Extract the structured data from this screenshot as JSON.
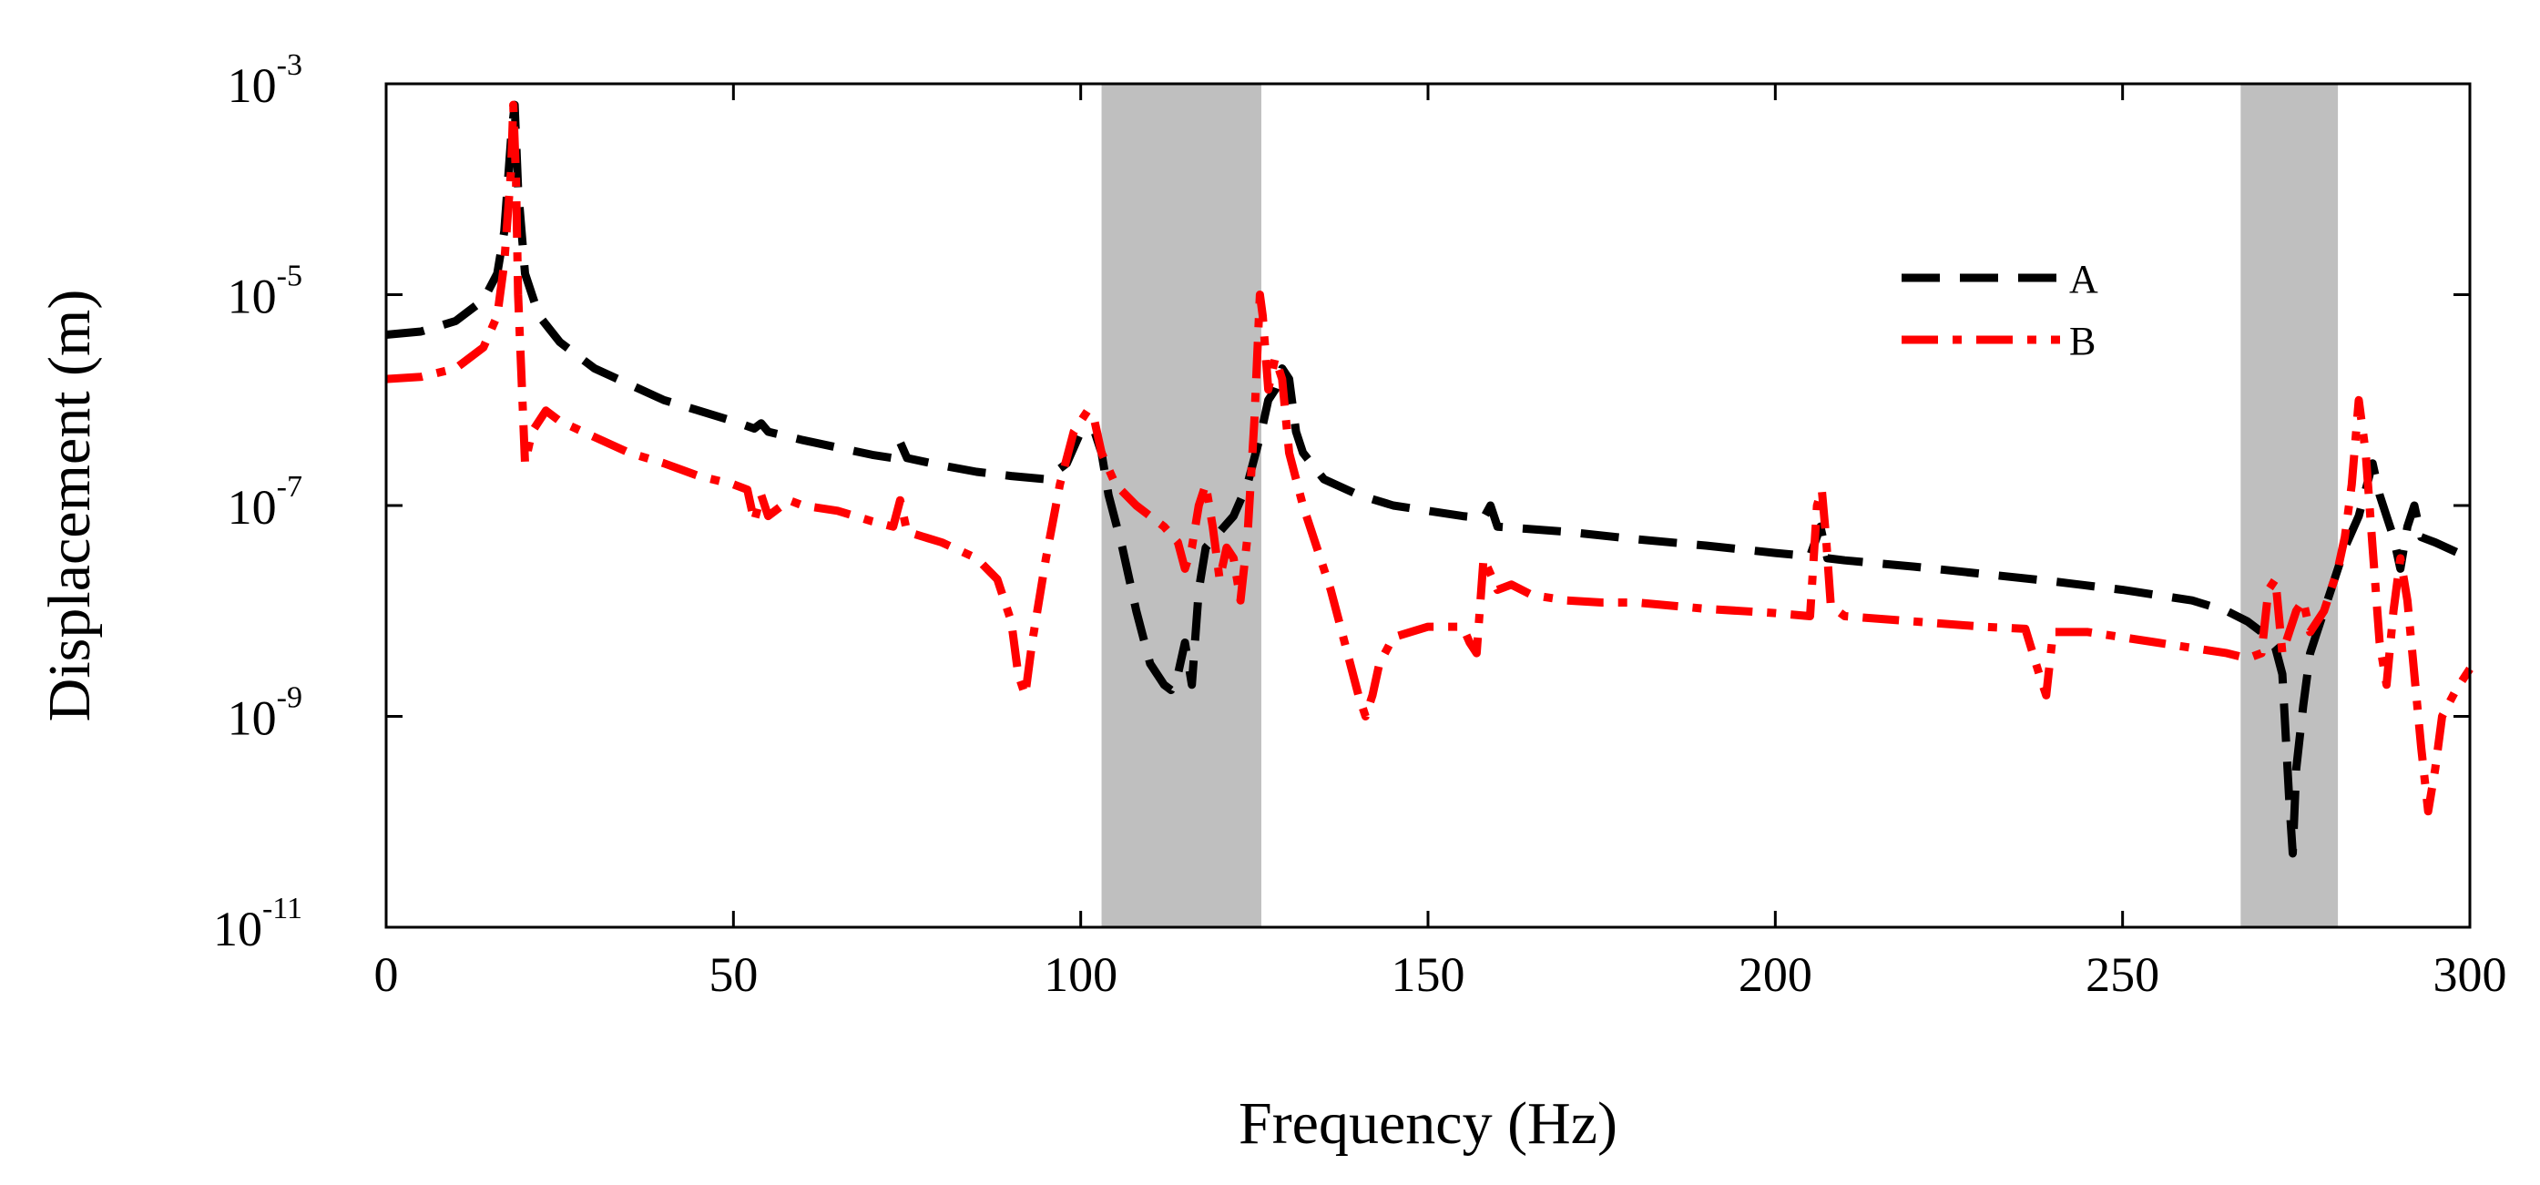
{
  "chart_data": {
    "type": "line",
    "title": "",
    "xlabel": "Frequency (Hz)",
    "ylabel": "Displacement (m)",
    "xlim": [
      0,
      300
    ],
    "ylim_log10": [
      -11,
      -3
    ],
    "yscale": "log",
    "grid": false,
    "x_ticks": [
      0,
      50,
      100,
      150,
      200,
      250,
      300
    ],
    "x_tick_labels": [
      "0",
      "50",
      "100",
      "150",
      "200",
      "250",
      "300"
    ],
    "y_ticks": [
      {
        "base": "10",
        "exp": "-11"
      },
      {
        "base": "10",
        "exp": "-9"
      },
      {
        "base": "10",
        "exp": "-7"
      },
      {
        "base": "10",
        "exp": "-5"
      },
      {
        "base": "10",
        "exp": "-3"
      }
    ],
    "shaded_bands": [
      {
        "x_start": 103,
        "x_end": 126,
        "color": "#bfbfbf"
      },
      {
        "x_start": 267,
        "x_end": 281,
        "color": "#bfbfbf"
      }
    ],
    "legend_position": "top-right",
    "series": [
      {
        "name": "A",
        "color": "#000000",
        "dash": "dashed",
        "points": [
          [
            0,
            -5.38
          ],
          [
            5,
            -5.35
          ],
          [
            10,
            -5.25
          ],
          [
            14,
            -5.05
          ],
          [
            16,
            -4.8
          ],
          [
            17,
            -4.4
          ],
          [
            18,
            -3.5
          ],
          [
            18.5,
            -3.2
          ],
          [
            19,
            -4.0
          ],
          [
            20,
            -4.8
          ],
          [
            22,
            -5.2
          ],
          [
            25,
            -5.45
          ],
          [
            30,
            -5.7
          ],
          [
            35,
            -5.85
          ],
          [
            40,
            -6.0
          ],
          [
            45,
            -6.1
          ],
          [
            50,
            -6.2
          ],
          [
            53,
            -6.27
          ],
          [
            54,
            -6.22
          ],
          [
            55,
            -6.3
          ],
          [
            60,
            -6.38
          ],
          [
            65,
            -6.45
          ],
          [
            70,
            -6.52
          ],
          [
            73,
            -6.55
          ],
          [
            74,
            -6.4
          ],
          [
            75,
            -6.55
          ],
          [
            80,
            -6.62
          ],
          [
            85,
            -6.68
          ],
          [
            90,
            -6.72
          ],
          [
            95,
            -6.75
          ],
          [
            98,
            -6.6
          ],
          [
            100,
            -6.3
          ],
          [
            102,
            -6.3
          ],
          [
            103,
            -6.5
          ],
          [
            104,
            -6.9
          ],
          [
            106,
            -7.4
          ],
          [
            108,
            -8.0
          ],
          [
            110,
            -8.5
          ],
          [
            112,
            -8.7
          ],
          [
            113,
            -8.75
          ],
          [
            114,
            -8.6
          ],
          [
            115,
            -8.3
          ],
          [
            116,
            -8.7
          ],
          [
            117,
            -7.8
          ],
          [
            118,
            -7.4
          ],
          [
            120,
            -7.25
          ],
          [
            122,
            -7.1
          ],
          [
            124,
            -6.8
          ],
          [
            126,
            -6.3
          ],
          [
            127,
            -6.0
          ],
          [
            128,
            -5.9
          ],
          [
            129,
            -5.7
          ],
          [
            130,
            -5.8
          ],
          [
            131,
            -6.3
          ],
          [
            132,
            -6.5
          ],
          [
            135,
            -6.75
          ],
          [
            140,
            -6.9
          ],
          [
            145,
            -7.0
          ],
          [
            150,
            -7.05
          ],
          [
            155,
            -7.1
          ],
          [
            158,
            -7.12
          ],
          [
            159,
            -7.0
          ],
          [
            160,
            -7.2
          ],
          [
            170,
            -7.25
          ],
          [
            180,
            -7.32
          ],
          [
            190,
            -7.38
          ],
          [
            200,
            -7.45
          ],
          [
            205,
            -7.48
          ],
          [
            206.5,
            -7.2
          ],
          [
            207.5,
            -7.5
          ],
          [
            210,
            -7.52
          ],
          [
            220,
            -7.58
          ],
          [
            230,
            -7.65
          ],
          [
            240,
            -7.72
          ],
          [
            250,
            -7.8
          ],
          [
            260,
            -7.9
          ],
          [
            265,
            -8.0
          ],
          [
            268,
            -8.1
          ],
          [
            270,
            -8.2
          ],
          [
            272,
            -8.35
          ],
          [
            273,
            -8.6
          ],
          [
            274,
            -9.8
          ],
          [
            274.5,
            -10.3
          ],
          [
            275,
            -9.5
          ],
          [
            276,
            -8.9
          ],
          [
            277,
            -8.4
          ],
          [
            278,
            -8.2
          ],
          [
            280,
            -7.8
          ],
          [
            282,
            -7.4
          ],
          [
            284,
            -7.1
          ],
          [
            286,
            -6.6
          ],
          [
            287,
            -6.9
          ],
          [
            288,
            -7.1
          ],
          [
            289,
            -7.3
          ],
          [
            290,
            -7.6
          ],
          [
            291,
            -7.2
          ],
          [
            292,
            -7.0
          ],
          [
            293,
            -7.3
          ],
          [
            295,
            -7.35
          ],
          [
            300,
            -7.5
          ]
        ]
      },
      {
        "name": "B",
        "color": "#ff0000",
        "dash": "dashdot",
        "points": [
          [
            0,
            -5.8
          ],
          [
            5,
            -5.78
          ],
          [
            10,
            -5.7
          ],
          [
            14,
            -5.5
          ],
          [
            16,
            -5.2
          ],
          [
            17,
            -4.7
          ],
          [
            18,
            -3.8
          ],
          [
            18.3,
            -3.2
          ],
          [
            18.7,
            -3.9
          ],
          [
            19,
            -5.0
          ],
          [
            20,
            -6.6
          ],
          [
            21,
            -6.3
          ],
          [
            23,
            -6.1
          ],
          [
            25,
            -6.2
          ],
          [
            30,
            -6.35
          ],
          [
            35,
            -6.5
          ],
          [
            40,
            -6.6
          ],
          [
            45,
            -6.72
          ],
          [
            50,
            -6.8
          ],
          [
            52,
            -6.85
          ],
          [
            53,
            -7.15
          ],
          [
            54,
            -6.9
          ],
          [
            55,
            -7.1
          ],
          [
            58,
            -6.95
          ],
          [
            60,
            -7.0
          ],
          [
            65,
            -7.05
          ],
          [
            70,
            -7.15
          ],
          [
            73,
            -7.2
          ],
          [
            74,
            -6.95
          ],
          [
            75,
            -7.25
          ],
          [
            80,
            -7.35
          ],
          [
            85,
            -7.5
          ],
          [
            88,
            -7.7
          ],
          [
            90,
            -8.1
          ],
          [
            91,
            -8.6
          ],
          [
            92,
            -8.8
          ],
          [
            93,
            -8.3
          ],
          [
            95,
            -7.5
          ],
          [
            97,
            -6.8
          ],
          [
            99,
            -6.3
          ],
          [
            101,
            -6.1
          ],
          [
            102,
            -6.2
          ],
          [
            103,
            -6.5
          ],
          [
            105,
            -6.8
          ],
          [
            108,
            -7.0
          ],
          [
            110,
            -7.1
          ],
          [
            112,
            -7.2
          ],
          [
            114,
            -7.35
          ],
          [
            115,
            -7.6
          ],
          [
            116,
            -7.4
          ],
          [
            117,
            -7.0
          ],
          [
            118,
            -6.8
          ],
          [
            119,
            -7.2
          ],
          [
            120,
            -7.7
          ],
          [
            121,
            -7.4
          ],
          [
            122,
            -7.5
          ],
          [
            123,
            -7.9
          ],
          [
            124,
            -7.3
          ],
          [
            125,
            -6.2
          ],
          [
            125.8,
            -5.0
          ],
          [
            126.2,
            -5.2
          ],
          [
            127,
            -5.9
          ],
          [
            128,
            -5.6
          ],
          [
            129,
            -5.8
          ],
          [
            130,
            -6.5
          ],
          [
            132,
            -7.0
          ],
          [
            134,
            -7.4
          ],
          [
            136,
            -7.8
          ],
          [
            138,
            -8.3
          ],
          [
            140,
            -8.8
          ],
          [
            141,
            -9.0
          ],
          [
            142,
            -8.8
          ],
          [
            143,
            -8.5
          ],
          [
            145,
            -8.25
          ],
          [
            150,
            -8.15
          ],
          [
            155,
            -8.15
          ],
          [
            156,
            -8.3
          ],
          [
            157,
            -8.4
          ],
          [
            158,
            -7.5
          ],
          [
            160,
            -7.8
          ],
          [
            162,
            -7.75
          ],
          [
            165,
            -7.85
          ],
          [
            170,
            -7.9
          ],
          [
            175,
            -7.92
          ],
          [
            180,
            -7.92
          ],
          [
            190,
            -7.98
          ],
          [
            200,
            -8.02
          ],
          [
            205,
            -8.05
          ],
          [
            206,
            -7.0
          ],
          [
            206.7,
            -6.85
          ],
          [
            207.3,
            -7.3
          ],
          [
            208,
            -7.95
          ],
          [
            210,
            -8.05
          ],
          [
            220,
            -8.1
          ],
          [
            230,
            -8.15
          ],
          [
            236,
            -8.17
          ],
          [
            238,
            -8.6
          ],
          [
            239,
            -8.8
          ],
          [
            240,
            -8.2
          ],
          [
            245,
            -8.2
          ],
          [
            250,
            -8.25
          ],
          [
            255,
            -8.3
          ],
          [
            260,
            -8.35
          ],
          [
            265,
            -8.4
          ],
          [
            268,
            -8.45
          ],
          [
            270,
            -8.4
          ],
          [
            271,
            -7.8
          ],
          [
            272,
            -7.7
          ],
          [
            273,
            -8.4
          ],
          [
            274,
            -8.2
          ],
          [
            275,
            -8.0
          ],
          [
            276,
            -7.9
          ],
          [
            277,
            -8.2
          ],
          [
            279,
            -8.0
          ],
          [
            281,
            -7.6
          ],
          [
            282,
            -7.3
          ],
          [
            283,
            -6.8
          ],
          [
            284,
            -6.0
          ],
          [
            285,
            -6.5
          ],
          [
            286,
            -7.4
          ],
          [
            287,
            -8.3
          ],
          [
            288,
            -8.7
          ],
          [
            289,
            -8.0
          ],
          [
            290,
            -7.5
          ],
          [
            291,
            -7.9
          ],
          [
            292,
            -8.6
          ],
          [
            293,
            -9.3
          ],
          [
            294,
            -9.9
          ],
          [
            295,
            -9.5
          ],
          [
            296,
            -9.0
          ],
          [
            298,
            -8.75
          ],
          [
            300,
            -8.55
          ]
        ]
      }
    ]
  }
}
